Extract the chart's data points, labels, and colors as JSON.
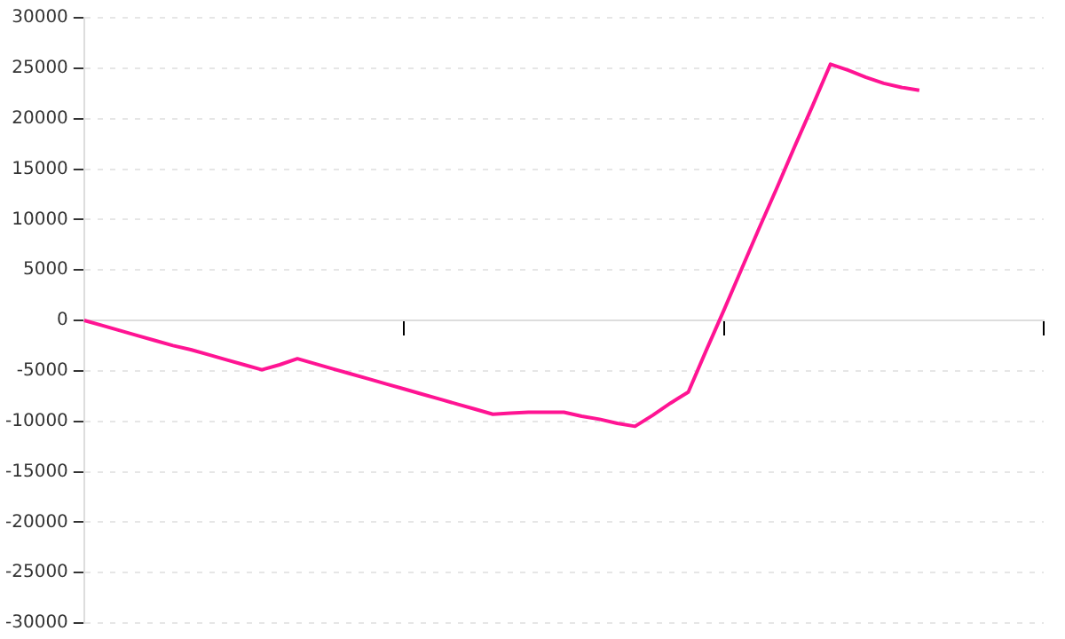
{
  "chart_data": {
    "type": "line",
    "categories": [
      null,
      null,
      null,
      null,
      null,
      null,
      null,
      null,
      null,
      null,
      null,
      null,
      null,
      null,
      null,
      null,
      null,
      null,
      null,
      null,
      null,
      null,
      null,
      null,
      null,
      null,
      null,
      null,
      null,
      null,
      null,
      null,
      null,
      null,
      null,
      null,
      null,
      null,
      null,
      null,
      null,
      null,
      null,
      null,
      null,
      null,
      null,
      null,
      null,
      null,
      null,
      null,
      null,
      null,
      null
    ],
    "series": [
      {
        "color": "#ff1493",
        "values": [
          0,
          -500,
          -1000,
          -1500,
          -2000,
          -2500,
          -2900,
          -3400,
          -3900,
          -4400,
          -4900,
          -4400,
          -3800,
          -4300,
          -4800,
          -5300,
          -5800,
          -6300,
          -6800,
          -7300,
          -7800,
          -8300,
          -8800,
          -9300,
          -9200,
          -9100,
          -9100,
          -9100,
          -9500,
          -9800,
          -10200,
          -10500,
          -9400,
          -8200,
          -7100,
          -3000,
          1000,
          5100,
          9200,
          13200,
          17300,
          21300,
          25400,
          24800,
          24100,
          23500,
          23100,
          22800,
          null,
          null,
          null,
          null,
          null,
          null,
          null
        ]
      }
    ],
    "ylim": [
      -30000,
      30000
    ],
    "yticks": [
      -30000,
      -25000,
      -20000,
      -15000,
      -10000,
      -5000,
      0,
      5000,
      10000,
      15000,
      20000,
      25000,
      30000
    ],
    "tick_labels": "y",
    "grid": "y",
    "legend": false,
    "marker": "none",
    "line_style": "solid"
  }
}
